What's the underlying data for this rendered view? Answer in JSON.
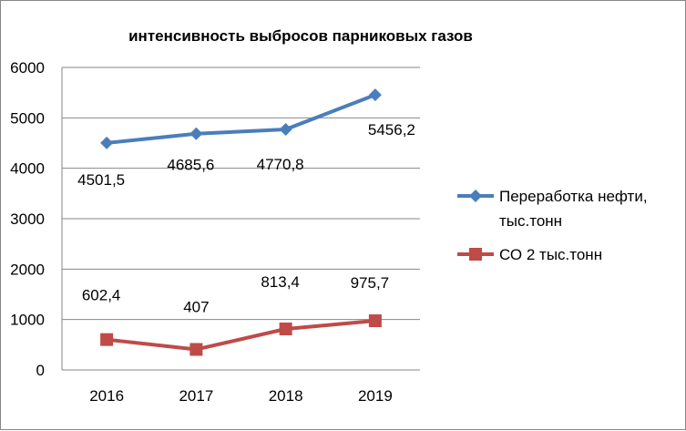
{
  "chart_data": {
    "type": "line",
    "title": "интенсивность выбросов парниковых газов",
    "categories": [
      "2016",
      "2017",
      "2018",
      "2019"
    ],
    "ylim": [
      0,
      6000
    ],
    "yticks": [
      "0",
      "1000",
      "2000",
      "3000",
      "4000",
      "5000",
      "6000"
    ],
    "grid": true,
    "legend_position": "right",
    "series": [
      {
        "name": "Переработка нефти, тыс.тонн",
        "legend_lines": [
          "Переработка нефти,",
          "тыс.тонн"
        ],
        "values": [
          4501.5,
          4685.6,
          4770.8,
          5456.2
        ],
        "labels": [
          "4501,5",
          "4685,6",
          "4770,8",
          "5456,2"
        ],
        "marker": "diamond",
        "color": "#4A7EBB"
      },
      {
        "name": "СО 2 тыс.тонн",
        "legend_lines": [
          "СО 2 тыс.тонн"
        ],
        "values": [
          602.4,
          407,
          813.4,
          975.7
        ],
        "labels": [
          "602,4",
          "407",
          "813,4",
          "975,7"
        ],
        "marker": "square",
        "color": "#BE4B48"
      }
    ]
  }
}
